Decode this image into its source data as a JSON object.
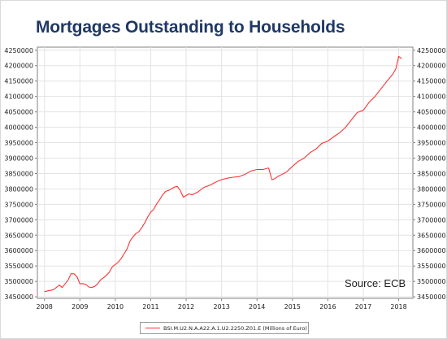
{
  "title": "Mortgages Outstanding to Households",
  "source_note": "Source: ECB",
  "chart_data": {
    "type": "line",
    "title": "Mortgages Outstanding to Households",
    "xlabel": "",
    "ylabel": "",
    "x_ticks": [
      "2008",
      "2009",
      "2010",
      "2011",
      "2012",
      "2013",
      "2014",
      "2015",
      "2016",
      "2017",
      "2018"
    ],
    "y_ticks": [
      "3450000",
      "3500000",
      "3550000",
      "3600000",
      "3650000",
      "3700000",
      "3750000",
      "3800000",
      "3850000",
      "3900000",
      "3950000",
      "4000000",
      "4050000",
      "4100000",
      "4150000",
      "4200000",
      "4250000"
    ],
    "xlim": [
      2007.8,
      2018.4
    ],
    "ylim": [
      3445000,
      4260000
    ],
    "grid": true,
    "legend_position": "bottom",
    "line_color": "#ff3333",
    "series": [
      {
        "name": "BSI.M.U2.N.A.A22.A.1.U2.2250.Z01.E (Millions of Euro)",
        "x": [
          2008.0,
          2008.25,
          2008.42,
          2008.5,
          2008.67,
          2008.75,
          2008.83,
          2008.92,
          2009.0,
          2009.08,
          2009.17,
          2009.25,
          2009.33,
          2009.42,
          2009.5,
          2009.58,
          2009.67,
          2009.75,
          2009.83,
          2009.92,
          2010.0,
          2010.08,
          2010.17,
          2010.25,
          2010.33,
          2010.42,
          2010.5,
          2010.58,
          2010.67,
          2010.75,
          2010.83,
          2010.92,
          2011.0,
          2011.08,
          2011.17,
          2011.25,
          2011.33,
          2011.42,
          2011.5,
          2011.58,
          2011.67,
          2011.75,
          2011.83,
          2011.92,
          2012.0,
          2012.08,
          2012.17,
          2012.33,
          2012.5,
          2012.67,
          2012.83,
          2013.0,
          2013.17,
          2013.33,
          2013.5,
          2013.67,
          2013.83,
          2014.0,
          2014.17,
          2014.33,
          2014.42,
          2014.5,
          2014.58,
          2014.67,
          2014.83,
          2015.0,
          2015.17,
          2015.33,
          2015.5,
          2015.67,
          2015.83,
          2016.0,
          2016.17,
          2016.33,
          2016.5,
          2016.67,
          2016.83,
          2017.0,
          2017.17,
          2017.33,
          2017.5,
          2017.67,
          2017.83,
          2017.92,
          2018.0,
          2018.08
        ],
        "values": [
          3467000,
          3473000,
          3488000,
          3480000,
          3505000,
          3525000,
          3525000,
          3515000,
          3492000,
          3493000,
          3490000,
          3482000,
          3480000,
          3484000,
          3492000,
          3505000,
          3512000,
          3520000,
          3530000,
          3548000,
          3555000,
          3562000,
          3575000,
          3590000,
          3605000,
          3632000,
          3645000,
          3655000,
          3662000,
          3675000,
          3690000,
          3710000,
          3725000,
          3733000,
          3752000,
          3765000,
          3780000,
          3792000,
          3795000,
          3800000,
          3806000,
          3808000,
          3796000,
          3773000,
          3779000,
          3784000,
          3781000,
          3790000,
          3805000,
          3812000,
          3822000,
          3830000,
          3835000,
          3838000,
          3840000,
          3848000,
          3858000,
          3863000,
          3863000,
          3868000,
          3830000,
          3833000,
          3840000,
          3845000,
          3855000,
          3873000,
          3890000,
          3900000,
          3918000,
          3930000,
          3948000,
          3955000,
          3970000,
          3982000,
          4000000,
          4025000,
          4048000,
          4055000,
          4082000,
          4100000,
          4125000,
          4150000,
          4172000,
          4190000,
          4230000,
          4223000
        ]
      }
    ]
  }
}
